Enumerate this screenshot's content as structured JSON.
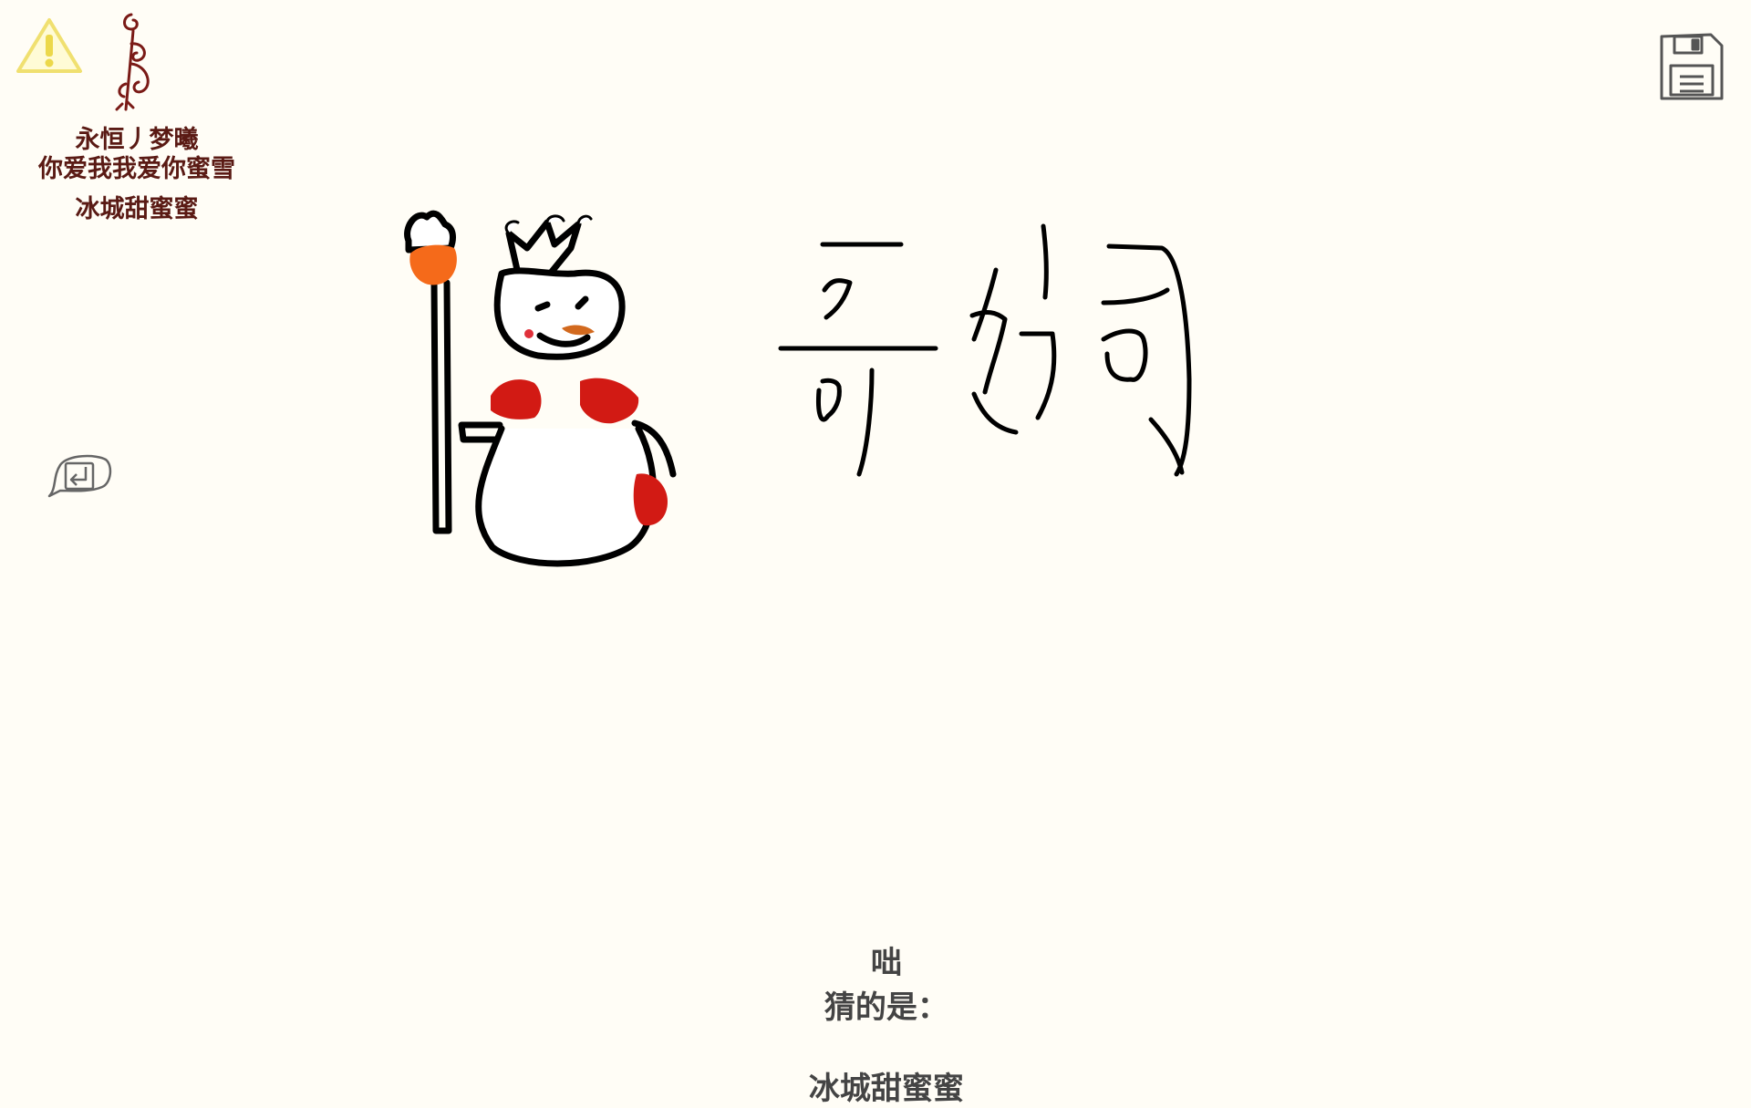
{
  "header": {
    "warning_icon": "warning-triangle-icon",
    "ornament_icon": "decorative-swirl-icon",
    "names": [
      "永恒丿梦曦",
      "你爱我我爱你蜜雪",
      "冰城甜蜜蜜"
    ]
  },
  "toolbar": {
    "save_icon": "floppy-save-icon",
    "back_icon": "return-arrow-icon"
  },
  "drawing": {
    "subject": "snowman-with-crown-and-staff",
    "handwritten_text": "歌词",
    "colors": {
      "outline": "#000000",
      "scarf": "#d21a14",
      "staff_orb": "#f56a1a",
      "nose": "#d2691e"
    }
  },
  "footer": {
    "speaker": "咄",
    "prompt": "猜的是：",
    "guess": "冰城甜蜜蜜"
  }
}
